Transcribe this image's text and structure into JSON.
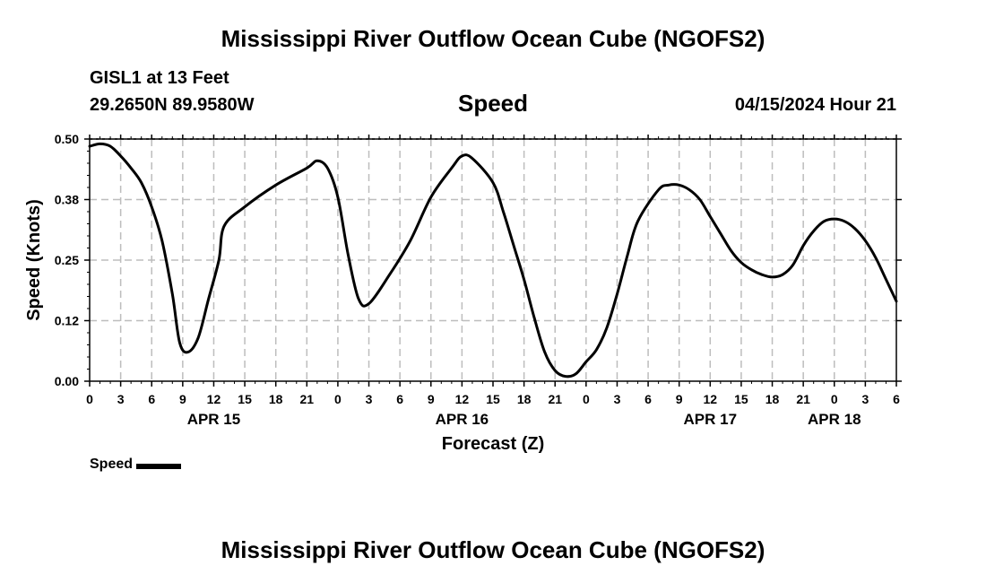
{
  "header": {
    "title": "Mississippi River Outflow Ocean Cube (NGOFS2)",
    "station": "GISL1 at 13 Feet",
    "coords": "29.2650N  89.9580W",
    "subtitle": "Speed",
    "timestamp": "04/15/2024 Hour 21"
  },
  "footer": {
    "title": "Mississippi River Outflow Ocean Cube (NGOFS2)"
  },
  "legend": {
    "label": "Speed"
  },
  "chart_data": {
    "type": "line",
    "title": "Speed",
    "xlabel": "Forecast (Z)",
    "ylabel": "Speed (Knots)",
    "ylim": [
      0,
      0.5
    ],
    "xlim_hours": [
      0,
      78
    ],
    "y_ticks": [
      "0.00",
      "0.12",
      "0.25",
      "0.38",
      "0.50"
    ],
    "y_tick_values": [
      0,
      0.125,
      0.25,
      0.375,
      0.5
    ],
    "x_tick_labels": [
      "0",
      "3",
      "6",
      "9",
      "12",
      "15",
      "18",
      "21",
      "0",
      "3",
      "6",
      "9",
      "12",
      "15",
      "18",
      "21",
      "0",
      "3",
      "6",
      "9",
      "12",
      "15",
      "18",
      "21",
      "0",
      "3",
      "6"
    ],
    "date_labels": [
      {
        "label": "APR 15",
        "hour": 12
      },
      {
        "label": "APR 16",
        "hour": 36
      },
      {
        "label": "APR 17",
        "hour": 60
      },
      {
        "label": "APR 18",
        "hour": 72
      }
    ],
    "grid": true,
    "legend_position": "bottom-left",
    "series": [
      {
        "name": "Speed",
        "color": "#000000",
        "x": [
          0,
          1,
          2,
          3,
          4,
          5,
          6,
          7,
          8,
          8.7,
          9.5,
          10.5,
          11.5,
          12.5,
          13,
          15,
          18,
          21,
          22,
          23,
          24,
          25,
          26,
          27,
          29,
          31,
          33,
          35,
          36,
          37,
          39,
          40,
          41,
          42,
          43,
          44,
          45,
          46,
          47,
          48,
          49,
          50,
          51,
          52,
          53,
          55,
          56,
          57,
          58,
          59,
          60,
          61,
          62,
          63,
          64,
          65,
          66,
          67,
          68,
          69,
          70,
          71,
          72,
          73,
          74,
          75,
          76,
          77,
          78
        ],
        "y": [
          0.485,
          0.49,
          0.485,
          0.465,
          0.44,
          0.41,
          0.36,
          0.29,
          0.18,
          0.08,
          0.06,
          0.09,
          0.17,
          0.25,
          0.32,
          0.36,
          0.405,
          0.44,
          0.455,
          0.44,
          0.38,
          0.26,
          0.17,
          0.16,
          0.22,
          0.29,
          0.38,
          0.44,
          0.465,
          0.46,
          0.41,
          0.35,
          0.28,
          0.21,
          0.13,
          0.06,
          0.022,
          0.01,
          0.015,
          0.04,
          0.065,
          0.11,
          0.18,
          0.26,
          0.33,
          0.395,
          0.405,
          0.405,
          0.395,
          0.375,
          0.34,
          0.305,
          0.27,
          0.245,
          0.23,
          0.22,
          0.215,
          0.22,
          0.24,
          0.28,
          0.31,
          0.33,
          0.335,
          0.33,
          0.315,
          0.29,
          0.255,
          0.21,
          0.165
        ]
      }
    ]
  }
}
